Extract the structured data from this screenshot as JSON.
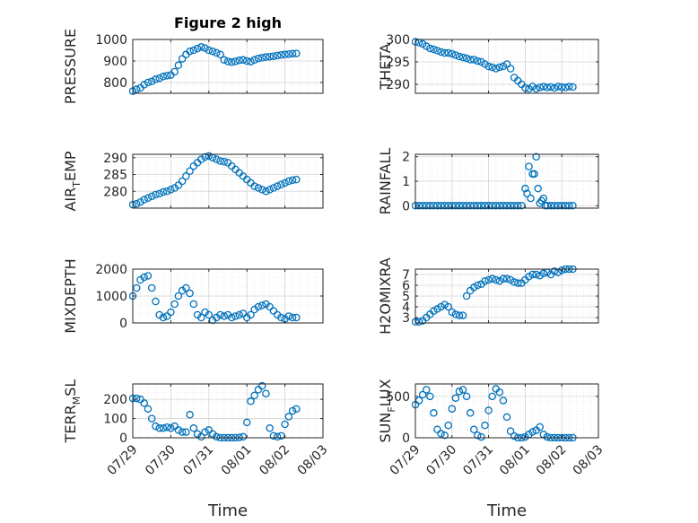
{
  "figure_title": "Figure 2 high",
  "style": {
    "marker_color": "#0072BD",
    "axes_color": "#262626",
    "grid_color": "#e0e0e0"
  },
  "chart_data": [
    {
      "id": "pressure",
      "type": "scatter",
      "title": "Figure 2 high",
      "xlabel": "",
      "ylabel": "PRESSURE",
      "xlim": [
        0,
        5
      ],
      "ylim": [
        750,
        1000
      ],
      "yticks": [
        800,
        900,
        1000
      ],
      "xtick_labels": [],
      "grid": true,
      "series": [
        {
          "name": "",
          "x": [
            0.0,
            0.1,
            0.2,
            0.3,
            0.4,
            0.5,
            0.6,
            0.7,
            0.8,
            0.9,
            1.0,
            1.1,
            1.2,
            1.3,
            1.4,
            1.5,
            1.6,
            1.7,
            1.8,
            1.9,
            2.0,
            2.1,
            2.2,
            2.3,
            2.4,
            2.5,
            2.6,
            2.7,
            2.8,
            2.9,
            3.0,
            3.1,
            3.2,
            3.3,
            3.4,
            3.5,
            3.6,
            3.7,
            3.8,
            3.9,
            4.0,
            4.1,
            4.2,
            4.3
          ],
          "y": [
            760,
            768,
            775,
            790,
            800,
            805,
            815,
            820,
            828,
            832,
            835,
            850,
            880,
            910,
            930,
            945,
            950,
            958,
            965,
            960,
            950,
            945,
            938,
            930,
            905,
            898,
            895,
            898,
            903,
            905,
            900,
            897,
            905,
            912,
            915,
            918,
            920,
            922,
            925,
            928,
            930,
            932,
            934,
            935
          ]
        }
      ]
    },
    {
      "id": "theta",
      "type": "scatter",
      "title": "",
      "xlabel": "",
      "ylabel": "THETA",
      "xlim": [
        0,
        5
      ],
      "ylim": [
        288,
        300
      ],
      "yticks": [
        290,
        295,
        300
      ],
      "xtick_labels": [],
      "grid": true,
      "series": [
        {
          "name": "",
          "x": [
            0.0,
            0.1,
            0.2,
            0.3,
            0.4,
            0.5,
            0.6,
            0.7,
            0.8,
            0.9,
            1.0,
            1.1,
            1.2,
            1.3,
            1.4,
            1.5,
            1.6,
            1.7,
            1.8,
            1.9,
            2.0,
            2.1,
            2.2,
            2.3,
            2.4,
            2.5,
            2.6,
            2.7,
            2.8,
            2.9,
            3.0,
            3.1,
            3.2,
            3.3,
            3.4,
            3.5,
            3.6,
            3.7,
            3.8,
            3.9,
            4.0,
            4.1,
            4.2,
            4.3
          ],
          "y": [
            299.5,
            299.3,
            299.0,
            298.5,
            298.0,
            297.8,
            297.5,
            297.2,
            297.0,
            297.0,
            296.8,
            296.5,
            296.2,
            296.0,
            295.8,
            295.5,
            295.5,
            295.2,
            295.0,
            294.5,
            294.0,
            293.8,
            293.5,
            293.8,
            294.0,
            294.5,
            293.5,
            291.5,
            290.8,
            290.0,
            289.2,
            289.0,
            289.5,
            289.0,
            289.3,
            289.5,
            289.3,
            289.4,
            289.2,
            289.5,
            289.4,
            289.3,
            289.5,
            289.4
          ]
        }
      ]
    },
    {
      "id": "air_temp",
      "type": "scatter",
      "title": "",
      "xlabel": "",
      "ylabel": "AIR_TEMP",
      "ylabel_main": "AIR",
      "ylabel_sub": "T",
      "ylabel_rest": "EMP",
      "xlim": [
        0,
        5
      ],
      "ylim": [
        275,
        291
      ],
      "yticks": [
        280,
        285,
        290
      ],
      "xtick_labels": [],
      "grid": true,
      "series": [
        {
          "name": "",
          "x": [
            0.0,
            0.1,
            0.2,
            0.3,
            0.4,
            0.5,
            0.6,
            0.7,
            0.8,
            0.9,
            1.0,
            1.1,
            1.2,
            1.3,
            1.4,
            1.5,
            1.6,
            1.7,
            1.8,
            1.9,
            2.0,
            2.1,
            2.2,
            2.3,
            2.4,
            2.5,
            2.6,
            2.7,
            2.8,
            2.9,
            3.0,
            3.1,
            3.2,
            3.3,
            3.4,
            3.5,
            3.6,
            3.7,
            3.8,
            3.9,
            4.0,
            4.1,
            4.2,
            4.3
          ],
          "y": [
            276.0,
            276.3,
            276.8,
            277.5,
            278.0,
            278.5,
            279.0,
            279.3,
            279.8,
            280.0,
            280.5,
            281.0,
            281.8,
            283.0,
            284.5,
            286.0,
            287.5,
            288.5,
            289.5,
            290.2,
            290.5,
            290.0,
            289.5,
            289.0,
            288.8,
            288.5,
            287.5,
            286.5,
            285.5,
            284.5,
            283.5,
            282.5,
            281.5,
            281.0,
            280.5,
            280.0,
            280.5,
            281.0,
            281.5,
            282.0,
            282.5,
            283.0,
            283.3,
            283.5
          ]
        }
      ]
    },
    {
      "id": "rainfall",
      "type": "scatter",
      "title": "",
      "xlabel": "",
      "ylabel": "RAINFALL",
      "xlim": [
        0,
        5
      ],
      "ylim": [
        -0.1,
        2.1
      ],
      "yticks": [
        0,
        1,
        2
      ],
      "xtick_labels": [],
      "grid": true,
      "series": [
        {
          "name": "",
          "x": [
            0.0,
            0.1,
            0.2,
            0.3,
            0.4,
            0.5,
            0.6,
            0.7,
            0.8,
            0.9,
            1.0,
            1.1,
            1.2,
            1.3,
            1.4,
            1.5,
            1.6,
            1.7,
            1.8,
            1.9,
            2.0,
            2.1,
            2.2,
            2.3,
            2.4,
            2.5,
            2.6,
            2.7,
            2.8,
            2.9,
            3.0,
            3.05,
            3.1,
            3.15,
            3.2,
            3.25,
            3.3,
            3.35,
            3.4,
            3.45,
            3.5,
            3.55,
            3.6,
            3.7,
            3.8,
            3.9,
            4.0,
            4.1,
            4.2,
            4.3
          ],
          "y": [
            0,
            0,
            0,
            0,
            0,
            0,
            0,
            0,
            0,
            0,
            0,
            0,
            0,
            0,
            0,
            0,
            0,
            0,
            0,
            0,
            0,
            0,
            0,
            0,
            0,
            0,
            0,
            0,
            0,
            0,
            0.7,
            0.5,
            1.6,
            0.3,
            1.3,
            1.3,
            2.0,
            0.7,
            0.1,
            0.2,
            0.3,
            0,
            0,
            0,
            0,
            0,
            0,
            0,
            0,
            0
          ]
        }
      ]
    },
    {
      "id": "mixdepth",
      "type": "scatter",
      "title": "",
      "xlabel": "",
      "ylabel": "MIXDEPTH",
      "xlim": [
        0,
        5
      ],
      "ylim": [
        0,
        2000
      ],
      "yticks": [
        0,
        1000,
        2000
      ],
      "xtick_labels": [],
      "grid": true,
      "series": [
        {
          "name": "",
          "x": [
            0.0,
            0.1,
            0.2,
            0.3,
            0.4,
            0.5,
            0.6,
            0.7,
            0.8,
            0.9,
            1.0,
            1.1,
            1.2,
            1.3,
            1.4,
            1.5,
            1.6,
            1.7,
            1.8,
            1.9,
            2.0,
            2.1,
            2.2,
            2.3,
            2.4,
            2.5,
            2.6,
            2.7,
            2.8,
            2.9,
            3.0,
            3.1,
            3.2,
            3.3,
            3.4,
            3.5,
            3.6,
            3.7,
            3.8,
            3.9,
            4.0,
            4.1,
            4.2,
            4.3
          ],
          "y": [
            1000,
            1300,
            1600,
            1700,
            1750,
            1300,
            800,
            300,
            200,
            250,
            400,
            700,
            1000,
            1200,
            1300,
            1100,
            700,
            300,
            200,
            400,
            300,
            100,
            200,
            300,
            250,
            300,
            200,
            250,
            300,
            350,
            200,
            300,
            500,
            600,
            650,
            700,
            600,
            450,
            300,
            200,
            150,
            250,
            200,
            200
          ]
        }
      ]
    },
    {
      "id": "h2omixra",
      "type": "scatter",
      "title": "",
      "xlabel": "",
      "ylabel": "H2OMIXRA",
      "xlim": [
        0,
        5
      ],
      "ylim": [
        2.5,
        7.5
      ],
      "yticks": [
        3,
        4,
        5,
        6,
        7
      ],
      "xtick_labels": [],
      "grid": true,
      "series": [
        {
          "name": "",
          "x": [
            0.0,
            0.1,
            0.2,
            0.3,
            0.4,
            0.5,
            0.6,
            0.7,
            0.8,
            0.9,
            1.0,
            1.1,
            1.2,
            1.3,
            1.4,
            1.5,
            1.6,
            1.7,
            1.8,
            1.9,
            2.0,
            2.1,
            2.2,
            2.3,
            2.4,
            2.5,
            2.6,
            2.7,
            2.8,
            2.9,
            3.0,
            3.1,
            3.2,
            3.3,
            3.4,
            3.5,
            3.6,
            3.7,
            3.8,
            3.9,
            4.0,
            4.1,
            4.2,
            4.3
          ],
          "y": [
            2.6,
            2.6,
            2.7,
            3.0,
            3.3,
            3.6,
            3.8,
            4.0,
            4.2,
            4.0,
            3.5,
            3.3,
            3.2,
            3.2,
            5.0,
            5.5,
            5.8,
            6.0,
            6.1,
            6.4,
            6.5,
            6.6,
            6.5,
            6.4,
            6.6,
            6.6,
            6.5,
            6.3,
            6.2,
            6.2,
            6.5,
            6.8,
            7.0,
            7.0,
            6.9,
            7.1,
            7.2,
            7.0,
            7.3,
            7.2,
            7.4,
            7.5,
            7.5,
            7.5
          ]
        }
      ]
    },
    {
      "id": "terr_msl",
      "type": "scatter",
      "title": "",
      "xlabel": "Time",
      "ylabel": "TERR_MSL",
      "ylabel_main": "TERR",
      "ylabel_sub": "M",
      "ylabel_rest": "SL",
      "xlim": [
        0,
        5
      ],
      "ylim": [
        0,
        280
      ],
      "yticks": [
        0,
        100,
        200
      ],
      "xtick_labels": [
        "07/29",
        "07/30",
        "07/31",
        "08/01",
        "08/02",
        "08/03"
      ],
      "grid": true,
      "series": [
        {
          "name": "",
          "x": [
            0.0,
            0.1,
            0.2,
            0.3,
            0.4,
            0.5,
            0.6,
            0.7,
            0.8,
            0.9,
            1.0,
            1.1,
            1.2,
            1.3,
            1.4,
            1.5,
            1.6,
            1.7,
            1.8,
            1.9,
            2.0,
            2.1,
            2.2,
            2.3,
            2.4,
            2.5,
            2.6,
            2.7,
            2.8,
            2.9,
            3.0,
            3.1,
            3.2,
            3.3,
            3.4,
            3.5,
            3.6,
            3.7,
            3.8,
            3.9,
            4.0,
            4.1,
            4.2,
            4.3
          ],
          "y": [
            205,
            205,
            200,
            180,
            150,
            100,
            60,
            50,
            50,
            55,
            50,
            60,
            40,
            30,
            30,
            120,
            50,
            20,
            5,
            30,
            40,
            20,
            5,
            0,
            0,
            0,
            0,
            0,
            2,
            5,
            80,
            190,
            220,
            250,
            270,
            230,
            50,
            10,
            5,
            10,
            70,
            110,
            140,
            150
          ]
        }
      ]
    },
    {
      "id": "sun_flux",
      "type": "scatter",
      "title": "",
      "xlabel": "Time",
      "ylabel": "SUN_FLUX",
      "ylabel_main": "SUN",
      "ylabel_sub": "F",
      "ylabel_rest": "LUX",
      "xlim": [
        0,
        5
      ],
      "ylim": [
        0,
        650
      ],
      "yticks": [
        0,
        500
      ],
      "xtick_labels": [
        "07/29",
        "07/30",
        "07/31",
        "08/01",
        "08/02",
        "08/03"
      ],
      "grid": true,
      "series": [
        {
          "name": "",
          "x": [
            0.0,
            0.1,
            0.2,
            0.3,
            0.4,
            0.5,
            0.6,
            0.7,
            0.8,
            0.9,
            1.0,
            1.1,
            1.2,
            1.3,
            1.4,
            1.5,
            1.6,
            1.7,
            1.8,
            1.9,
            2.0,
            2.1,
            2.2,
            2.3,
            2.4,
            2.5,
            2.6,
            2.7,
            2.8,
            2.9,
            3.0,
            3.1,
            3.2,
            3.3,
            3.4,
            3.5,
            3.6,
            3.7,
            3.8,
            3.9,
            4.0,
            4.1,
            4.2,
            4.3
          ],
          "y": [
            400,
            450,
            520,
            580,
            500,
            300,
            100,
            50,
            30,
            150,
            350,
            480,
            560,
            580,
            500,
            300,
            100,
            30,
            10,
            150,
            330,
            500,
            590,
            550,
            450,
            250,
            80,
            20,
            0,
            0,
            10,
            40,
            70,
            90,
            130,
            40,
            10,
            0,
            0,
            0,
            0,
            0,
            0,
            0
          ]
        }
      ]
    }
  ]
}
